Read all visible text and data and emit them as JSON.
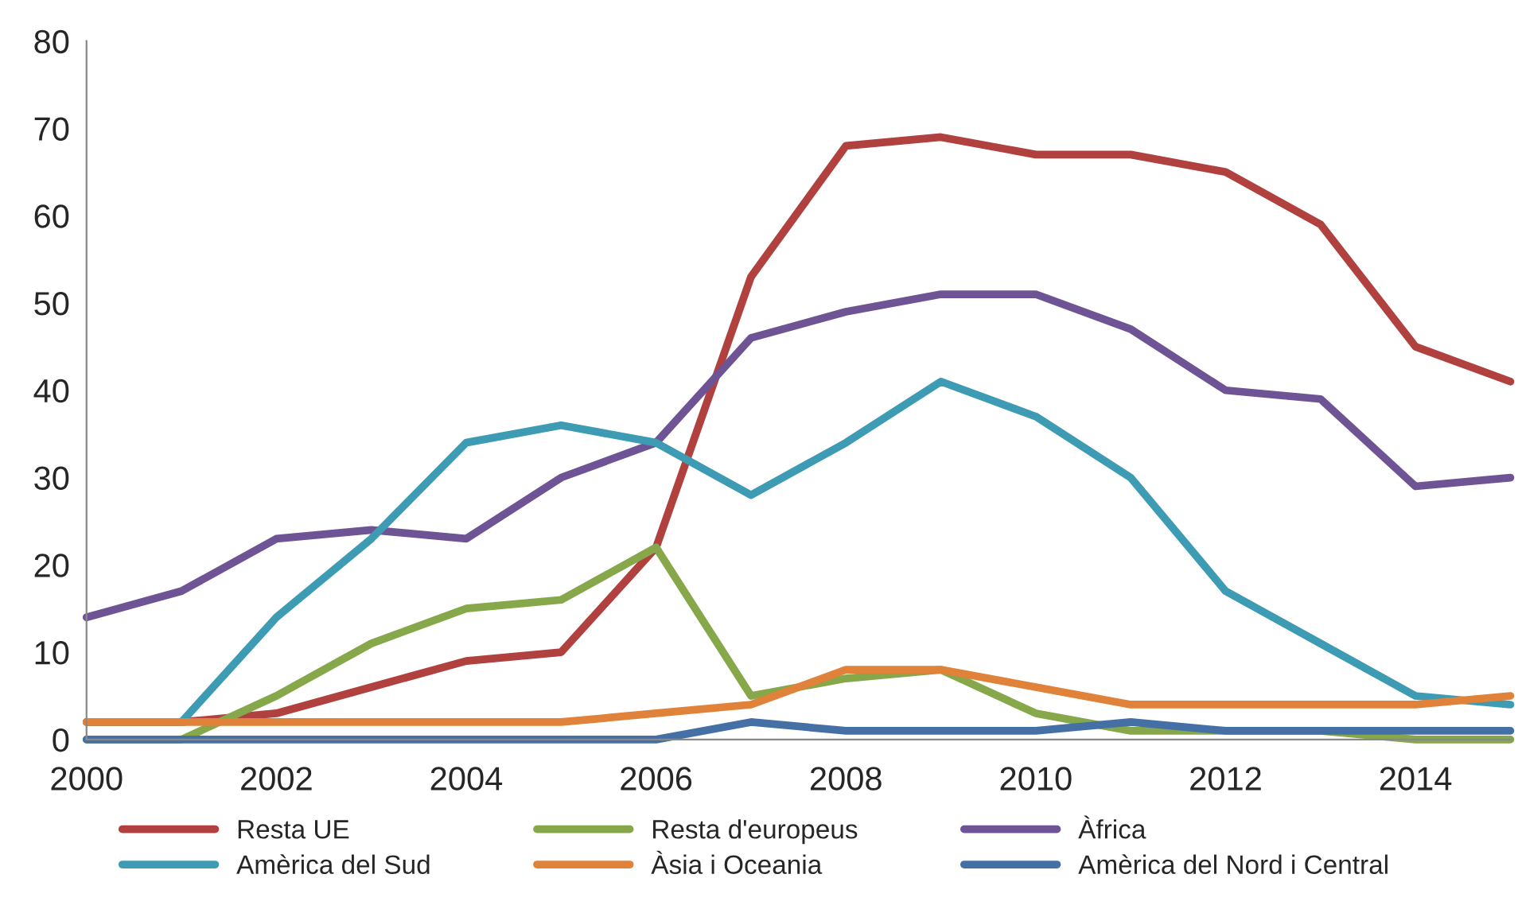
{
  "chart_data": {
    "type": "line",
    "x": [
      2000,
      2001,
      2002,
      2003,
      2004,
      2005,
      2006,
      2007,
      2008,
      2009,
      2010,
      2011,
      2012,
      2013,
      2014,
      2015
    ],
    "xlim": [
      2000,
      2015
    ],
    "xticks": [
      2000,
      2002,
      2004,
      2006,
      2008,
      2010,
      2012,
      2014
    ],
    "ylim": [
      0,
      80
    ],
    "yticks": [
      0,
      10,
      20,
      30,
      40,
      50,
      60,
      70,
      80
    ],
    "grid": false,
    "legend": "bottom",
    "marker": "none",
    "line_style": "solid",
    "series": [
      {
        "name": "Resta UE",
        "color": "#b0413e",
        "values": [
          2,
          2,
          3,
          6,
          9,
          10,
          22,
          53,
          68,
          69,
          67,
          67,
          65,
          59,
          45,
          41
        ]
      },
      {
        "name": "Resta d'europeus",
        "color": "#86a84a",
        "values": [
          0,
          0,
          5,
          11,
          15,
          16,
          22,
          5,
          7,
          8,
          3,
          1,
          1,
          1,
          0,
          0
        ]
      },
      {
        "name": "Àfrica",
        "color": "#6e5494",
        "values": [
          14,
          17,
          23,
          24,
          23,
          30,
          34,
          46,
          49,
          51,
          51,
          47,
          40,
          39,
          29,
          30
        ]
      },
      {
        "name": "Amèrica del Sud",
        "color": "#3d9bb3",
        "values": [
          2,
          2,
          14,
          23,
          34,
          36,
          34,
          28,
          34,
          41,
          37,
          30,
          17,
          11,
          5,
          4
        ]
      },
      {
        "name": "Àsia i Oceania",
        "color": "#e0823a",
        "values": [
          2,
          2,
          2,
          2,
          2,
          2,
          3,
          4,
          8,
          8,
          6,
          4,
          4,
          4,
          4,
          5
        ]
      },
      {
        "name": "Amèrica del Nord i Central",
        "color": "#4470a6",
        "values": [
          0,
          0,
          0,
          0,
          0,
          0,
          0,
          2,
          1,
          1,
          1,
          2,
          1,
          1,
          1,
          1
        ]
      }
    ]
  }
}
